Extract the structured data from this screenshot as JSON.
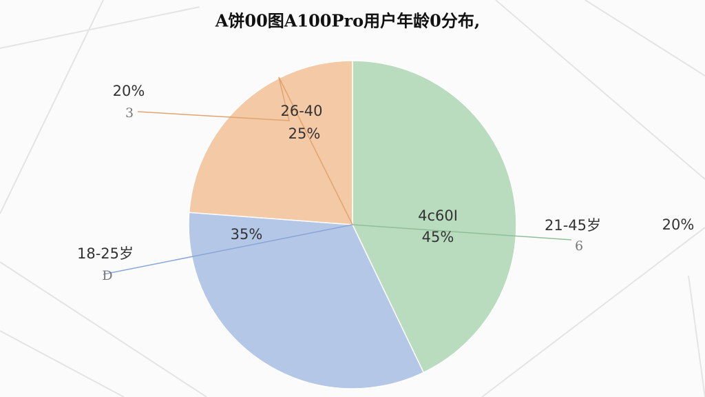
{
  "chart_data": {
    "type": "pie",
    "title": "A饼00图A100Pro用户年龄0分布,",
    "categories": [
      "4c60I",
      null,
      "26-40"
    ],
    "values": [
      45,
      35,
      25
    ],
    "value_labels": [
      "45%",
      "35%",
      "25%"
    ],
    "colors": [
      "#b9dcbf",
      "#b4c7e7",
      "#f4c9a6"
    ],
    "annotations": [
      {
        "label": "21-45岁",
        "note": "6"
      },
      {
        "label": "18-25岁",
        "note": "D"
      },
      {
        "label": "20%",
        "note": "3"
      }
    ],
    "side_note": "20%"
  }
}
